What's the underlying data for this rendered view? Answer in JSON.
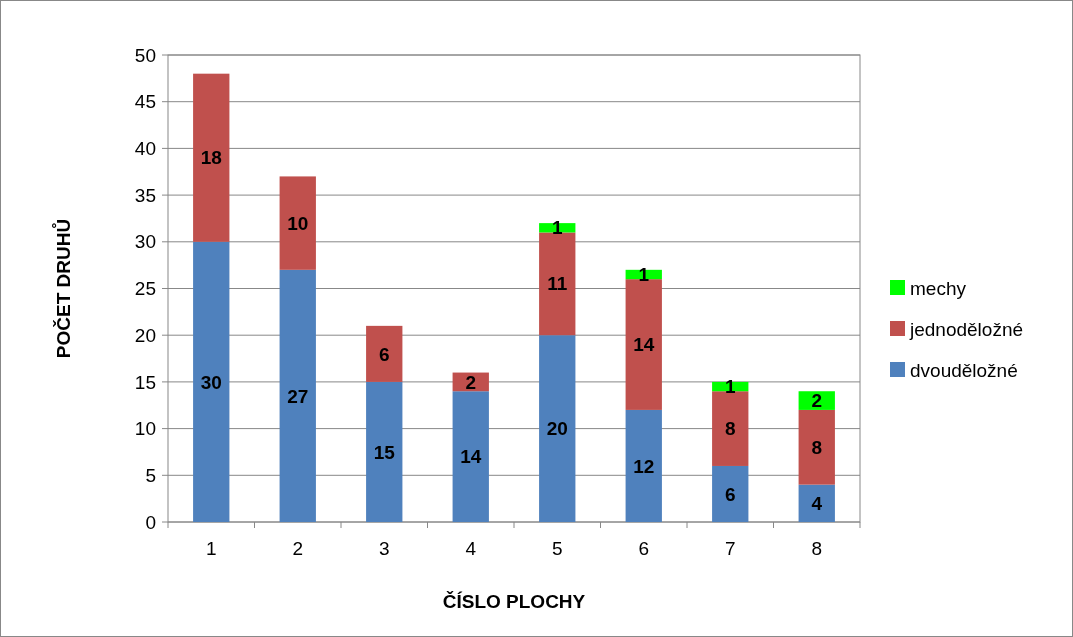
{
  "chart_data": {
    "type": "bar",
    "stacked": true,
    "xlabel": "ČÍSLO PLOCHY",
    "ylabel": "POČET DRUHŮ",
    "categories": [
      "1",
      "2",
      "3",
      "4",
      "5",
      "6",
      "7",
      "8"
    ],
    "series": [
      {
        "name": "dvouděložné",
        "color": "#4f81bd",
        "values": [
          30,
          27,
          15,
          14,
          20,
          12,
          6,
          4
        ]
      },
      {
        "name": "jednoděložné",
        "color": "#c0504d",
        "values": [
          18,
          10,
          6,
          2,
          11,
          14,
          8,
          8
        ]
      },
      {
        "name": "mechy",
        "color": "#00ff00",
        "values": [
          null,
          null,
          null,
          null,
          1,
          1,
          1,
          2
        ]
      }
    ],
    "ylim": [
      0,
      50
    ],
    "yticks": [
      0,
      5,
      10,
      15,
      20,
      25,
      30,
      35,
      40,
      45,
      50
    ],
    "grid": "y",
    "legend": "right",
    "data_labels": true
  }
}
